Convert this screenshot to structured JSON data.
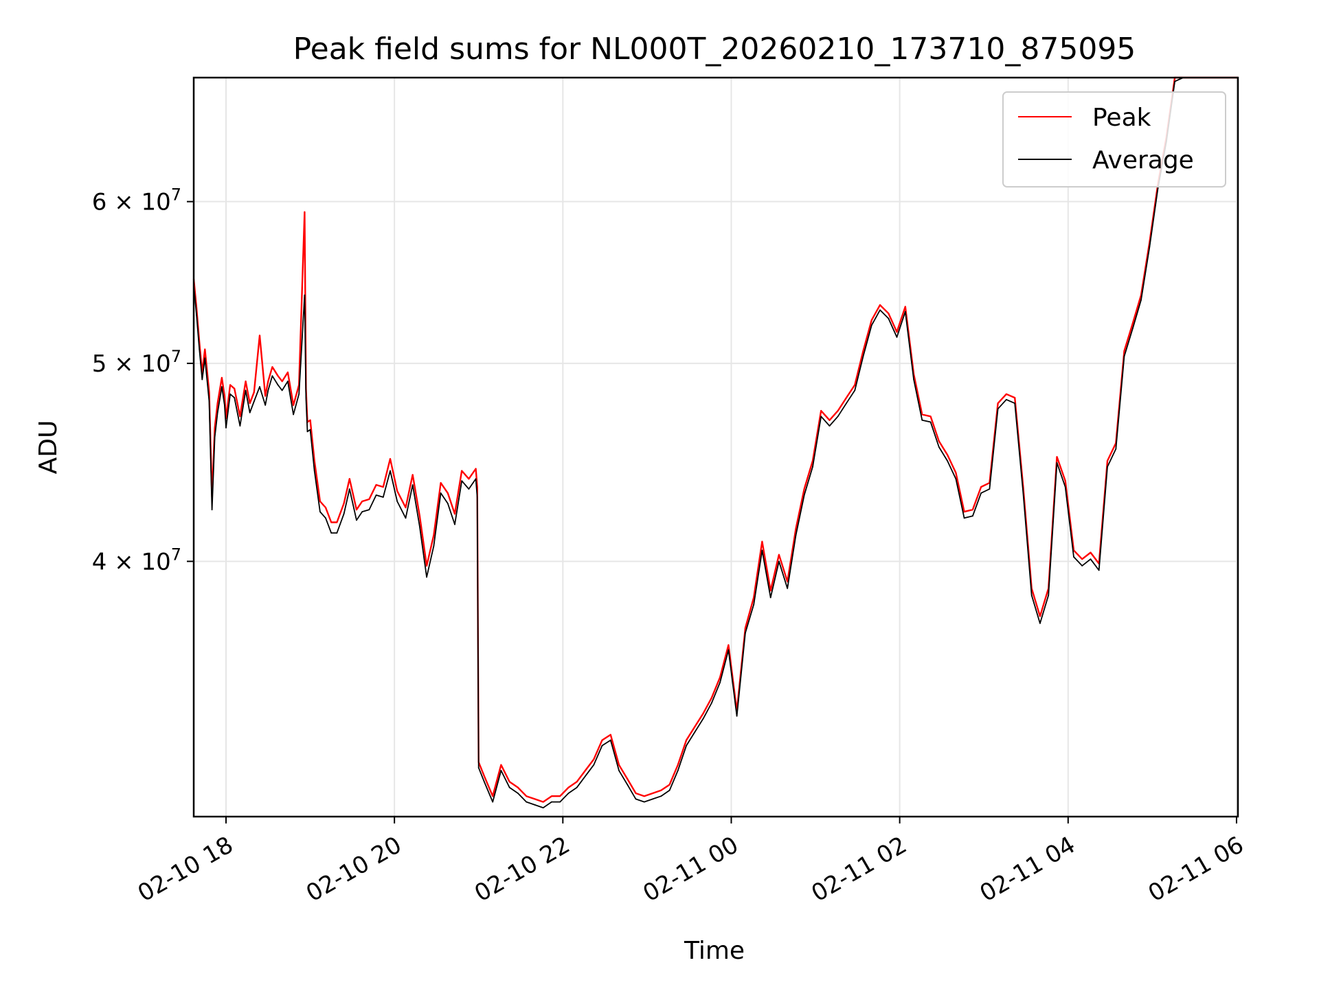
{
  "chart_data": {
    "type": "line",
    "title": "Peak field sums for NL000T_20260210_173710_875095",
    "xlabel": "Time",
    "ylabel": "ADU",
    "y_scale": "log",
    "grid": true,
    "legend_position": "upper right",
    "xlim": [
      "2026-02-10 17:37",
      "2026-02-11 06:01"
    ],
    "ylim": [
      30000000,
      69000000
    ],
    "x_ticks": [
      {
        "t": "2026-02-10 18:00",
        "label": "02-10 18"
      },
      {
        "t": "2026-02-10 20:00",
        "label": "02-10 20"
      },
      {
        "t": "2026-02-10 22:00",
        "label": "02-10 22"
      },
      {
        "t": "2026-02-11 00:00",
        "label": "02-11 00"
      },
      {
        "t": "2026-02-11 02:00",
        "label": "02-11 02"
      },
      {
        "t": "2026-02-11 04:00",
        "label": "02-11 04"
      },
      {
        "t": "2026-02-11 06:00",
        "label": "02-11 06"
      }
    ],
    "y_ticks": [
      {
        "value": 40000000,
        "label": "4 × 10⁷",
        "mant": "4",
        "exp": "7"
      },
      {
        "value": 50000000,
        "label": "5 × 10⁷",
        "mant": "5",
        "exp": "7"
      },
      {
        "value": 60000000,
        "label": "6 × 10⁷",
        "mant": "6",
        "exp": "7"
      }
    ],
    "series": [
      {
        "name": "Peak",
        "color": "#ff0000",
        "x": [
          "2026-02-10 17:37",
          "2026-02-10 17:39",
          "2026-02-10 17:41",
          "2026-02-10 17:43",
          "2026-02-10 17:45",
          "2026-02-10 17:48",
          "2026-02-10 17:50",
          "2026-02-10 17:52",
          "2026-02-10 17:54",
          "2026-02-10 17:57",
          "2026-02-10 17:59",
          "2026-02-10 18:00",
          "2026-02-10 18:03",
          "2026-02-10 18:06",
          "2026-02-10 18:10",
          "2026-02-10 18:14",
          "2026-02-10 18:17",
          "2026-02-10 18:20",
          "2026-02-10 18:24",
          "2026-02-10 18:28",
          "2026-02-10 18:30",
          "2026-02-10 18:33",
          "2026-02-10 18:37",
          "2026-02-10 18:40",
          "2026-02-10 18:44",
          "2026-02-10 18:48",
          "2026-02-10 18:52",
          "2026-02-10 18:56",
          "2026-02-10 18:57",
          "2026-02-10 18:58",
          "2026-02-10 19:00",
          "2026-02-10 19:03",
          "2026-02-10 19:07",
          "2026-02-10 19:11",
          "2026-02-10 19:15",
          "2026-02-10 19:19",
          "2026-02-10 19:24",
          "2026-02-10 19:28",
          "2026-02-10 19:33",
          "2026-02-10 19:37",
          "2026-02-10 19:42",
          "2026-02-10 19:47",
          "2026-02-10 19:52",
          "2026-02-10 19:57",
          "2026-02-10 20:02",
          "2026-02-10 20:08",
          "2026-02-10 20:13",
          "2026-02-10 20:18",
          "2026-02-10 20:23",
          "2026-02-10 20:28",
          "2026-02-10 20:33",
          "2026-02-10 20:38",
          "2026-02-10 20:43",
          "2026-02-10 20:48",
          "2026-02-10 20:53",
          "2026-02-10 20:58",
          "2026-02-10 20:59",
          "2026-02-10 21:00",
          "2026-02-10 21:04",
          "2026-02-10 21:10",
          "2026-02-10 21:16",
          "2026-02-10 21:22",
          "2026-02-10 21:28",
          "2026-02-10 21:34",
          "2026-02-10 21:40",
          "2026-02-10 21:46",
          "2026-02-10 21:52",
          "2026-02-10 21:58",
          "2026-02-10 22:04",
          "2026-02-10 22:10",
          "2026-02-10 22:16",
          "2026-02-10 22:22",
          "2026-02-10 22:28",
          "2026-02-10 22:34",
          "2026-02-10 22:40",
          "2026-02-10 22:46",
          "2026-02-10 22:52",
          "2026-02-10 22:58",
          "2026-02-10 23:04",
          "2026-02-10 23:10",
          "2026-02-10 23:16",
          "2026-02-10 23:22",
          "2026-02-10 23:28",
          "2026-02-10 23:34",
          "2026-02-10 23:40",
          "2026-02-10 23:46",
          "2026-02-10 23:52",
          "2026-02-10 23:58",
          "2026-02-11 00:04",
          "2026-02-11 00:10",
          "2026-02-11 00:16",
          "2026-02-11 00:22",
          "2026-02-11 00:28",
          "2026-02-11 00:34",
          "2026-02-11 00:40",
          "2026-02-11 00:46",
          "2026-02-11 00:52",
          "2026-02-11 00:58",
          "2026-02-11 01:04",
          "2026-02-11 01:10",
          "2026-02-11 01:16",
          "2026-02-11 01:22",
          "2026-02-11 01:28",
          "2026-02-11 01:34",
          "2026-02-11 01:40",
          "2026-02-11 01:46",
          "2026-02-11 01:52",
          "2026-02-11 01:58",
          "2026-02-11 02:04",
          "2026-02-11 02:10",
          "2026-02-11 02:16",
          "2026-02-11 02:22",
          "2026-02-11 02:28",
          "2026-02-11 02:34",
          "2026-02-11 02:40",
          "2026-02-11 02:46",
          "2026-02-11 02:52",
          "2026-02-11 02:58",
          "2026-02-11 03:04",
          "2026-02-11 03:10",
          "2026-02-11 03:16",
          "2026-02-11 03:22",
          "2026-02-11 03:28",
          "2026-02-11 03:34",
          "2026-02-11 03:40",
          "2026-02-11 03:46",
          "2026-02-11 03:52",
          "2026-02-11 03:58",
          "2026-02-11 04:04",
          "2026-02-11 04:10",
          "2026-02-11 04:16",
          "2026-02-11 04:22",
          "2026-02-11 04:28",
          "2026-02-11 04:34",
          "2026-02-11 04:40",
          "2026-02-11 04:46",
          "2026-02-11 04:52",
          "2026-02-11 04:58",
          "2026-02-11 05:04",
          "2026-02-11 05:10",
          "2026-02-11 05:16",
          "2026-02-11 05:22",
          "2026-02-11 05:28",
          "2026-02-11 05:34",
          "2026-02-11 05:40",
          "2026-02-11 05:46",
          "2026-02-11 05:52",
          "2026-02-11 05:58",
          "2026-02-11 06:01"
        ],
        "values": [
          55000000,
          53200000,
          51200000,
          49500000,
          50800000,
          48400000,
          43000000,
          46500000,
          47800000,
          49200000,
          48200000,
          47000000,
          48800000,
          48600000,
          47100000,
          49000000,
          47800000,
          48400000,
          51600000,
          48200000,
          49000000,
          49800000,
          49300000,
          49000000,
          49500000,
          47700000,
          48800000,
          59300000,
          48600000,
          46800000,
          46900000,
          44800000,
          42800000,
          42500000,
          41800000,
          41800000,
          42700000,
          43900000,
          42400000,
          42800000,
          42900000,
          43600000,
          43500000,
          44900000,
          43300000,
          42500000,
          44100000,
          42100000,
          39800000,
          41200000,
          43700000,
          43200000,
          42200000,
          44300000,
          43900000,
          44400000,
          43500000,
          31900000,
          31400000,
          30700000,
          31800000,
          31200000,
          31000000,
          30700000,
          30600000,
          30500000,
          30700000,
          30700000,
          31000000,
          31200000,
          31600000,
          32000000,
          32700000,
          32900000,
          31800000,
          31300000,
          30800000,
          30700000,
          30800000,
          30900000,
          31100000,
          31800000,
          32700000,
          33200000,
          33700000,
          34300000,
          35100000,
          36400000,
          33800000,
          37100000,
          38400000,
          40900000,
          38700000,
          40300000,
          39100000,
          41500000,
          43400000,
          44800000,
          47400000,
          46900000,
          47400000,
          48100000,
          48800000,
          50700000,
          52500000,
          53400000,
          52900000,
          51800000,
          53300000,
          49400000,
          47200000,
          47100000,
          45800000,
          45100000,
          44200000,
          42300000,
          42400000,
          43500000,
          43700000,
          47800000,
          48300000,
          48100000,
          43500000,
          38800000,
          37600000,
          38800000,
          45000000,
          43800000,
          40500000,
          40100000,
          40400000,
          39900000,
          44800000,
          45700000,
          50700000,
          52300000,
          54000000,
          57300000,
          61200000,
          64500000,
          69000000,
          69000000,
          69000000,
          69000000,
          69000000,
          69000000,
          69000000,
          69000000,
          69000000
        ]
      },
      {
        "name": "Average",
        "color": "#000000",
        "x": [
          "2026-02-10 17:37",
          "2026-02-10 17:39",
          "2026-02-10 17:41",
          "2026-02-10 17:43",
          "2026-02-10 17:45",
          "2026-02-10 17:48",
          "2026-02-10 17:50",
          "2026-02-10 17:52",
          "2026-02-10 17:54",
          "2026-02-10 17:57",
          "2026-02-10 17:59",
          "2026-02-10 18:00",
          "2026-02-10 18:03",
          "2026-02-10 18:06",
          "2026-02-10 18:10",
          "2026-02-10 18:14",
          "2026-02-10 18:17",
          "2026-02-10 18:20",
          "2026-02-10 18:24",
          "2026-02-10 18:28",
          "2026-02-10 18:30",
          "2026-02-10 18:33",
          "2026-02-10 18:37",
          "2026-02-10 18:40",
          "2026-02-10 18:44",
          "2026-02-10 18:48",
          "2026-02-10 18:52",
          "2026-02-10 18:56",
          "2026-02-10 18:57",
          "2026-02-10 18:58",
          "2026-02-10 19:00",
          "2026-02-10 19:03",
          "2026-02-10 19:07",
          "2026-02-10 19:11",
          "2026-02-10 19:15",
          "2026-02-10 19:19",
          "2026-02-10 19:24",
          "2026-02-10 19:28",
          "2026-02-10 19:33",
          "2026-02-10 19:37",
          "2026-02-10 19:42",
          "2026-02-10 19:47",
          "2026-02-10 19:52",
          "2026-02-10 19:57",
          "2026-02-10 20:02",
          "2026-02-10 20:08",
          "2026-02-10 20:13",
          "2026-02-10 20:18",
          "2026-02-10 20:23",
          "2026-02-10 20:28",
          "2026-02-10 20:33",
          "2026-02-10 20:38",
          "2026-02-10 20:43",
          "2026-02-10 20:48",
          "2026-02-10 20:53",
          "2026-02-10 20:58",
          "2026-02-10 20:59",
          "2026-02-10 21:00",
          "2026-02-10 21:04",
          "2026-02-10 21:10",
          "2026-02-10 21:16",
          "2026-02-10 21:22",
          "2026-02-10 21:28",
          "2026-02-10 21:34",
          "2026-02-10 21:40",
          "2026-02-10 21:46",
          "2026-02-10 21:52",
          "2026-02-10 21:58",
          "2026-02-10 22:04",
          "2026-02-10 22:10",
          "2026-02-10 22:16",
          "2026-02-10 22:22",
          "2026-02-10 22:28",
          "2026-02-10 22:34",
          "2026-02-10 22:40",
          "2026-02-10 22:46",
          "2026-02-10 22:52",
          "2026-02-10 22:58",
          "2026-02-10 23:04",
          "2026-02-10 23:10",
          "2026-02-10 23:16",
          "2026-02-10 23:22",
          "2026-02-10 23:28",
          "2026-02-10 23:34",
          "2026-02-10 23:40",
          "2026-02-10 23:46",
          "2026-02-10 23:52",
          "2026-02-10 23:58",
          "2026-02-11 00:04",
          "2026-02-11 00:10",
          "2026-02-11 00:16",
          "2026-02-11 00:22",
          "2026-02-11 00:28",
          "2026-02-11 00:34",
          "2026-02-11 00:40",
          "2026-02-11 00:46",
          "2026-02-11 00:52",
          "2026-02-11 00:58",
          "2026-02-11 01:04",
          "2026-02-11 01:10",
          "2026-02-11 01:16",
          "2026-02-11 01:22",
          "2026-02-11 01:28",
          "2026-02-11 01:34",
          "2026-02-11 01:40",
          "2026-02-11 01:46",
          "2026-02-11 01:52",
          "2026-02-11 01:58",
          "2026-02-11 02:04",
          "2026-02-11 02:10",
          "2026-02-11 02:16",
          "2026-02-11 02:22",
          "2026-02-11 02:28",
          "2026-02-11 02:34",
          "2026-02-11 02:40",
          "2026-02-11 02:46",
          "2026-02-11 02:52",
          "2026-02-11 02:58",
          "2026-02-11 03:04",
          "2026-02-11 03:10",
          "2026-02-11 03:16",
          "2026-02-11 03:22",
          "2026-02-11 03:28",
          "2026-02-11 03:34",
          "2026-02-11 03:40",
          "2026-02-11 03:46",
          "2026-02-11 03:52",
          "2026-02-11 03:58",
          "2026-02-11 04:04",
          "2026-02-11 04:10",
          "2026-02-11 04:16",
          "2026-02-11 04:22",
          "2026-02-11 04:28",
          "2026-02-11 04:34",
          "2026-02-11 04:40",
          "2026-02-11 04:46",
          "2026-02-11 04:52",
          "2026-02-11 04:58",
          "2026-02-11 05:04",
          "2026-02-11 05:10",
          "2026-02-11 05:16",
          "2026-02-11 05:22",
          "2026-02-11 05:28",
          "2026-02-11 05:34",
          "2026-02-11 05:40",
          "2026-02-11 05:46",
          "2026-02-11 05:52",
          "2026-02-11 05:58",
          "2026-02-11 06:01"
        ],
        "values": [
          54600000,
          52800000,
          50800000,
          49100000,
          50300000,
          47900000,
          42400000,
          46000000,
          47300000,
          48700000,
          47700000,
          46500000,
          48300000,
          48100000,
          46600000,
          48500000,
          47300000,
          47900000,
          48700000,
          47700000,
          48500000,
          49300000,
          48800000,
          48500000,
          49000000,
          47200000,
          48300000,
          54000000,
          48100000,
          46300000,
          46400000,
          44300000,
          42300000,
          42000000,
          41300000,
          41300000,
          42200000,
          43400000,
          41900000,
          42300000,
          42400000,
          43100000,
          43000000,
          44300000,
          42800000,
          42000000,
          43600000,
          41600000,
          39300000,
          40700000,
          43200000,
          42700000,
          41700000,
          43800000,
          43400000,
          43900000,
          43000000,
          31700000,
          31200000,
          30500000,
          31600000,
          31000000,
          30800000,
          30500000,
          30400000,
          30300000,
          30500000,
          30500000,
          30800000,
          31000000,
          31400000,
          31800000,
          32500000,
          32700000,
          31600000,
          31100000,
          30600000,
          30500000,
          30600000,
          30700000,
          30900000,
          31600000,
          32500000,
          33000000,
          33500000,
          34100000,
          34900000,
          36200000,
          33600000,
          36900000,
          38100000,
          40500000,
          38400000,
          40000000,
          38800000,
          41200000,
          43100000,
          44500000,
          47100000,
          46600000,
          47100000,
          47800000,
          48500000,
          50400000,
          52200000,
          53100000,
          52600000,
          51500000,
          53000000,
          49100000,
          46900000,
          46800000,
          45500000,
          44800000,
          43900000,
          42000000,
          42100000,
          43200000,
          43400000,
          47500000,
          48000000,
          47800000,
          43200000,
          38500000,
          37300000,
          38500000,
          44700000,
          43500000,
          40200000,
          39800000,
          40100000,
          39600000,
          44500000,
          45400000,
          50400000,
          52000000,
          53700000,
          57000000,
          60900000,
          64200000,
          68700000,
          69000000,
          69000000,
          69000000,
          69000000,
          69000000,
          69000000,
          69000000,
          69000000
        ]
      }
    ]
  }
}
